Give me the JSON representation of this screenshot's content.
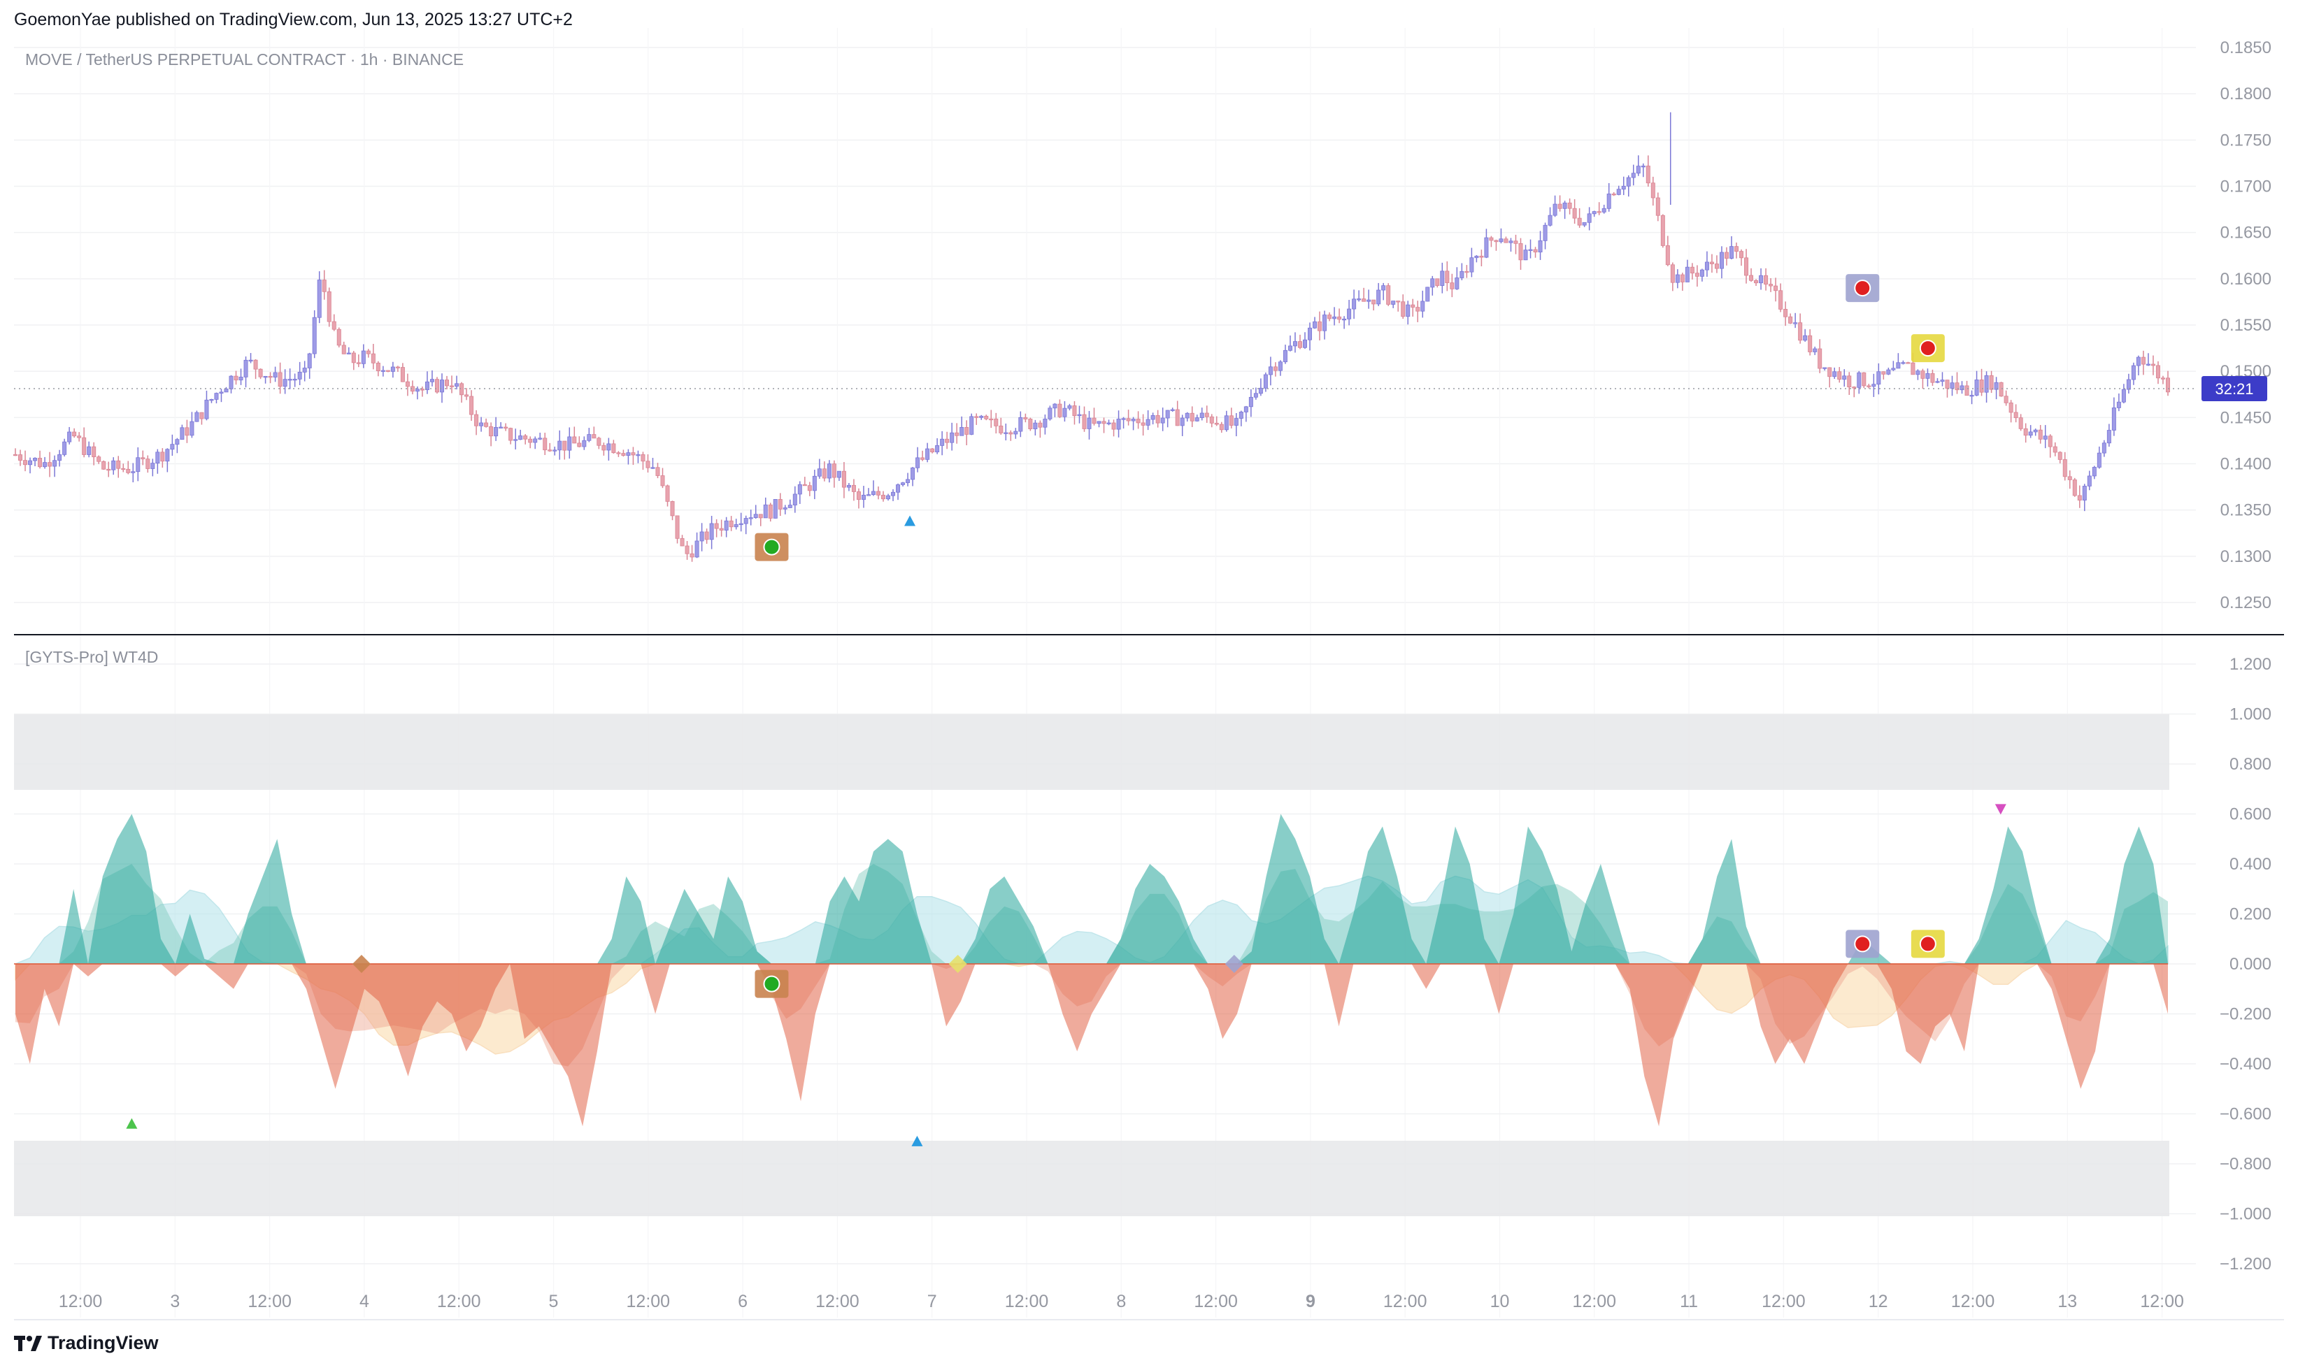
{
  "header": {
    "published_by": "GoemonYae published on TradingView.com, Jun 13, 2025 13:27 UTC+2"
  },
  "main_pane": {
    "symbol_label": "MOVE / TetherUS PERPETUAL CONTRACT · 1h · BINANCE",
    "y_ticks": [
      "0.1850",
      "0.1800",
      "0.1750",
      "0.1700",
      "0.1650",
      "0.1600",
      "0.1550",
      "0.1500",
      "0.1450",
      "0.1400",
      "0.1350",
      "0.1300",
      "0.1250"
    ],
    "countdown_badge": "32:21",
    "badge_color": "#3c3cc8",
    "bull_color": "#9e9be6",
    "bear_color": "#e8a3ae"
  },
  "osc_pane": {
    "label": "[GYTS-Pro] WT4D",
    "y_ticks": [
      "1.200",
      "1.000",
      "0.800",
      "0.600",
      "0.400",
      "0.200",
      "0.000",
      "−0.200",
      "−0.400",
      "−0.600",
      "−0.800",
      "−1.000",
      "−1.200"
    ],
    "teal_color": "#26a69a",
    "red_color": "#e0583a",
    "cyan_color": "#b2e3ea",
    "orange_color": "#fbd9a8"
  },
  "x_axis": {
    "labels": [
      "12:00",
      "3",
      "12:00",
      "4",
      "12:00",
      "5",
      "12:00",
      "6",
      "12:00",
      "7",
      "12:00",
      "8",
      "12:00",
      "9",
      "12:00",
      "10",
      "12:00",
      "11",
      "12:00",
      "12",
      "12:00",
      "13",
      "12:00"
    ]
  },
  "footer": {
    "brand": "TradingView"
  },
  "chart_data": [
    {
      "type": "candlestick",
      "title": "MOVE / TetherUS PERPETUAL CONTRACT · 1h · BINANCE",
      "ylim": [
        0.1225,
        0.186
      ],
      "close_path_x": [
        0,
        2,
        4,
        6,
        8,
        10,
        12,
        14,
        16,
        18,
        20,
        21,
        22,
        23,
        24,
        26,
        28,
        30,
        32,
        34,
        36,
        38,
        40,
        42,
        44,
        46,
        48,
        50,
        52,
        54,
        56,
        58,
        60,
        62,
        64,
        66,
        68,
        70,
        72,
        74,
        76,
        78,
        80,
        82,
        84,
        86,
        88,
        90,
        92,
        94,
        96,
        98,
        99,
        100,
        102,
        104,
        106,
        108,
        110,
        112,
        114,
        116,
        118,
        120,
        121,
        122,
        124,
        126,
        128,
        130,
        132,
        134,
        136,
        138,
        140,
        142,
        144,
        146,
        148
      ],
      "close_path_y": [
        0.141,
        0.14,
        0.143,
        0.1395,
        0.1395,
        0.141,
        0.144,
        0.148,
        0.151,
        0.149,
        0.1495,
        0.1605,
        0.153,
        0.151,
        0.1515,
        0.15,
        0.148,
        0.149,
        0.144,
        0.143,
        0.1425,
        0.142,
        0.1425,
        0.1415,
        0.1395,
        0.13,
        0.133,
        0.1345,
        0.135,
        0.137,
        0.1395,
        0.136,
        0.137,
        0.14,
        0.1425,
        0.1445,
        0.144,
        0.1445,
        0.146,
        0.144,
        0.1445,
        0.145,
        0.145,
        0.145,
        0.144,
        0.15,
        0.153,
        0.1555,
        0.157,
        0.1585,
        0.156,
        0.1605,
        0.159,
        0.162,
        0.165,
        0.162,
        0.168,
        0.166,
        0.17,
        0.172,
        0.16,
        0.161,
        0.163,
        0.1595,
        0.158,
        0.156,
        0.151,
        0.149,
        0.149,
        0.1505,
        0.149,
        0.148,
        0.149,
        0.144,
        0.142,
        0.136,
        0.144,
        0.152,
        0.1485
      ],
      "annotations": [
        {
          "kind": "buy-marker",
          "x": 52,
          "y": 0.131
        },
        {
          "kind": "triangle-up",
          "x": 61.5,
          "y": 0.1338
        },
        {
          "kind": "sell-marker",
          "x": 127,
          "y": 0.159
        },
        {
          "kind": "sell-marker",
          "x": 131.5,
          "y": 0.1525
        }
      ]
    },
    {
      "type": "area",
      "title": "[GYTS-Pro] WT4D",
      "ylim": [
        -1.25,
        1.25
      ],
      "overbought_band": [
        0.7,
        1.0
      ],
      "oversold_band": [
        -1.0,
        -0.7
      ],
      "wave_fast_x": [
        0,
        1,
        2,
        3,
        4,
        5,
        6,
        7,
        8,
        9,
        10,
        11,
        12,
        13,
        14,
        15,
        16,
        17,
        18,
        19,
        20,
        21,
        22,
        23,
        24,
        25,
        26,
        27,
        28,
        29,
        30,
        31,
        32,
        33,
        34,
        35,
        36,
        37,
        38,
        39,
        40,
        41,
        42,
        43,
        44,
        45,
        46,
        47,
        48,
        49,
        50,
        51,
        52,
        53,
        54,
        55,
        56,
        57,
        58,
        59,
        60,
        61,
        62,
        63,
        64,
        65,
        66,
        67,
        68,
        69,
        70,
        71,
        72,
        73,
        74,
        75,
        76,
        77,
        78,
        79,
        80,
        81,
        82,
        83,
        84,
        85,
        86,
        87,
        88,
        89,
        90,
        91,
        92,
        93,
        94,
        95,
        96,
        97,
        98,
        99,
        100,
        101,
        102,
        103,
        104,
        105,
        106,
        107,
        108,
        109,
        110,
        111,
        112,
        113,
        114,
        115,
        116,
        117,
        118,
        119,
        120,
        121,
        122,
        123,
        124,
        125,
        126,
        127,
        128,
        129,
        130,
        131,
        132,
        133,
        134,
        135,
        136,
        137,
        138,
        139,
        140,
        141,
        142,
        143,
        144,
        145,
        146,
        147,
        148
      ],
      "wave_fast_y": [
        -0.2,
        -0.4,
        -0.1,
        -0.25,
        0.3,
        -0.05,
        0.35,
        0.5,
        0.6,
        0.45,
        0.1,
        -0.05,
        0.2,
        0.02,
        -0.05,
        -0.1,
        0.2,
        0.35,
        0.5,
        0.2,
        -0.1,
        -0.3,
        -0.5,
        -0.3,
        -0.1,
        -0.15,
        -0.28,
        -0.45,
        -0.25,
        -0.15,
        -0.2,
        -0.35,
        -0.25,
        -0.1,
        0.0,
        -0.3,
        -0.25,
        -0.35,
        -0.45,
        -0.65,
        -0.35,
        0.1,
        0.35,
        0.25,
        -0.2,
        0.15,
        0.3,
        0.2,
        0.1,
        0.35,
        0.25,
        0.05,
        -0.1,
        -0.3,
        -0.55,
        -0.2,
        0.25,
        0.35,
        0.25,
        0.45,
        0.5,
        0.45,
        0.2,
        0.0,
        -0.25,
        -0.15,
        0.1,
        0.3,
        0.35,
        0.25,
        0.15,
        0.0,
        -0.2,
        -0.35,
        -0.2,
        -0.1,
        0.1,
        0.3,
        0.4,
        0.35,
        0.25,
        0.1,
        -0.1,
        -0.3,
        -0.2,
        0.05,
        0.35,
        0.6,
        0.5,
        0.35,
        0.1,
        -0.25,
        0.2,
        0.45,
        0.55,
        0.35,
        0.1,
        -0.1,
        0.25,
        0.55,
        0.4,
        0.1,
        -0.2,
        0.2,
        0.55,
        0.45,
        0.3,
        0.05,
        0.25,
        0.4,
        0.2,
        -0.1,
        -0.45,
        -0.65,
        -0.3,
        -0.15,
        0.1,
        0.35,
        0.5,
        0.15,
        -0.25,
        -0.4,
        -0.3,
        -0.4,
        -0.25,
        -0.1,
        0.0,
        0.1,
        0.05,
        -0.1,
        -0.35,
        -0.4,
        -0.25,
        -0.2,
        -0.35,
        0.1,
        0.3,
        0.55,
        0.45,
        0.2,
        -0.1,
        -0.3,
        -0.5,
        -0.35,
        0.1,
        0.4,
        0.55,
        0.4,
        -0.2
      ]
    }
  ]
}
